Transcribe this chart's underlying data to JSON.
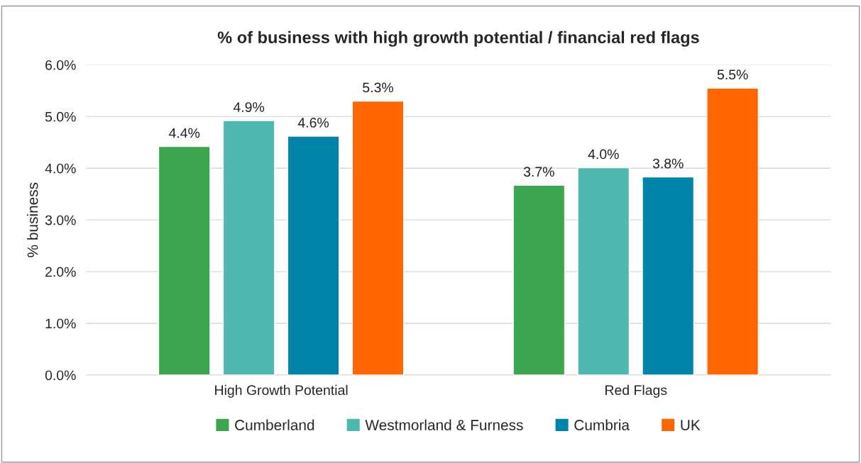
{
  "chart_data": {
    "type": "bar",
    "title": "% of business with high growth potential / financial red flags",
    "ylabel": "% business",
    "categories": [
      "High Growth Potential",
      "Red Flags"
    ],
    "series": [
      {
        "name": "Cumberland",
        "color": "#3ba550",
        "values": [
          4.42,
          3.67
        ],
        "value_labels": [
          "4.4%",
          "3.7%"
        ]
      },
      {
        "name": "Westmorland & Furness",
        "color": "#4fb9b0",
        "values": [
          4.92,
          4.01
        ],
        "value_labels": [
          "4.9%",
          "4.0%"
        ]
      },
      {
        "name": "Cumbria",
        "color": "#0083a9",
        "values": [
          4.62,
          3.83
        ],
        "value_labels": [
          "4.6%",
          "3.8%"
        ]
      },
      {
        "name": "UK",
        "color": "#ff6600",
        "values": [
          5.3,
          5.55
        ],
        "value_labels": [
          "5.3%",
          "5.5%"
        ]
      }
    ],
    "ylim": [
      0,
      6
    ],
    "yticks": [
      {
        "value": 0,
        "label": "0.0%"
      },
      {
        "value": 1,
        "label": "1.0%"
      },
      {
        "value": 2,
        "label": "2.0%"
      },
      {
        "value": 3,
        "label": "3.0%"
      },
      {
        "value": 4,
        "label": "4.0%"
      },
      {
        "value": 5,
        "label": "5.0%"
      },
      {
        "value": 6,
        "label": "6.0%"
      }
    ],
    "grid": "y",
    "legend": "bottom"
  }
}
